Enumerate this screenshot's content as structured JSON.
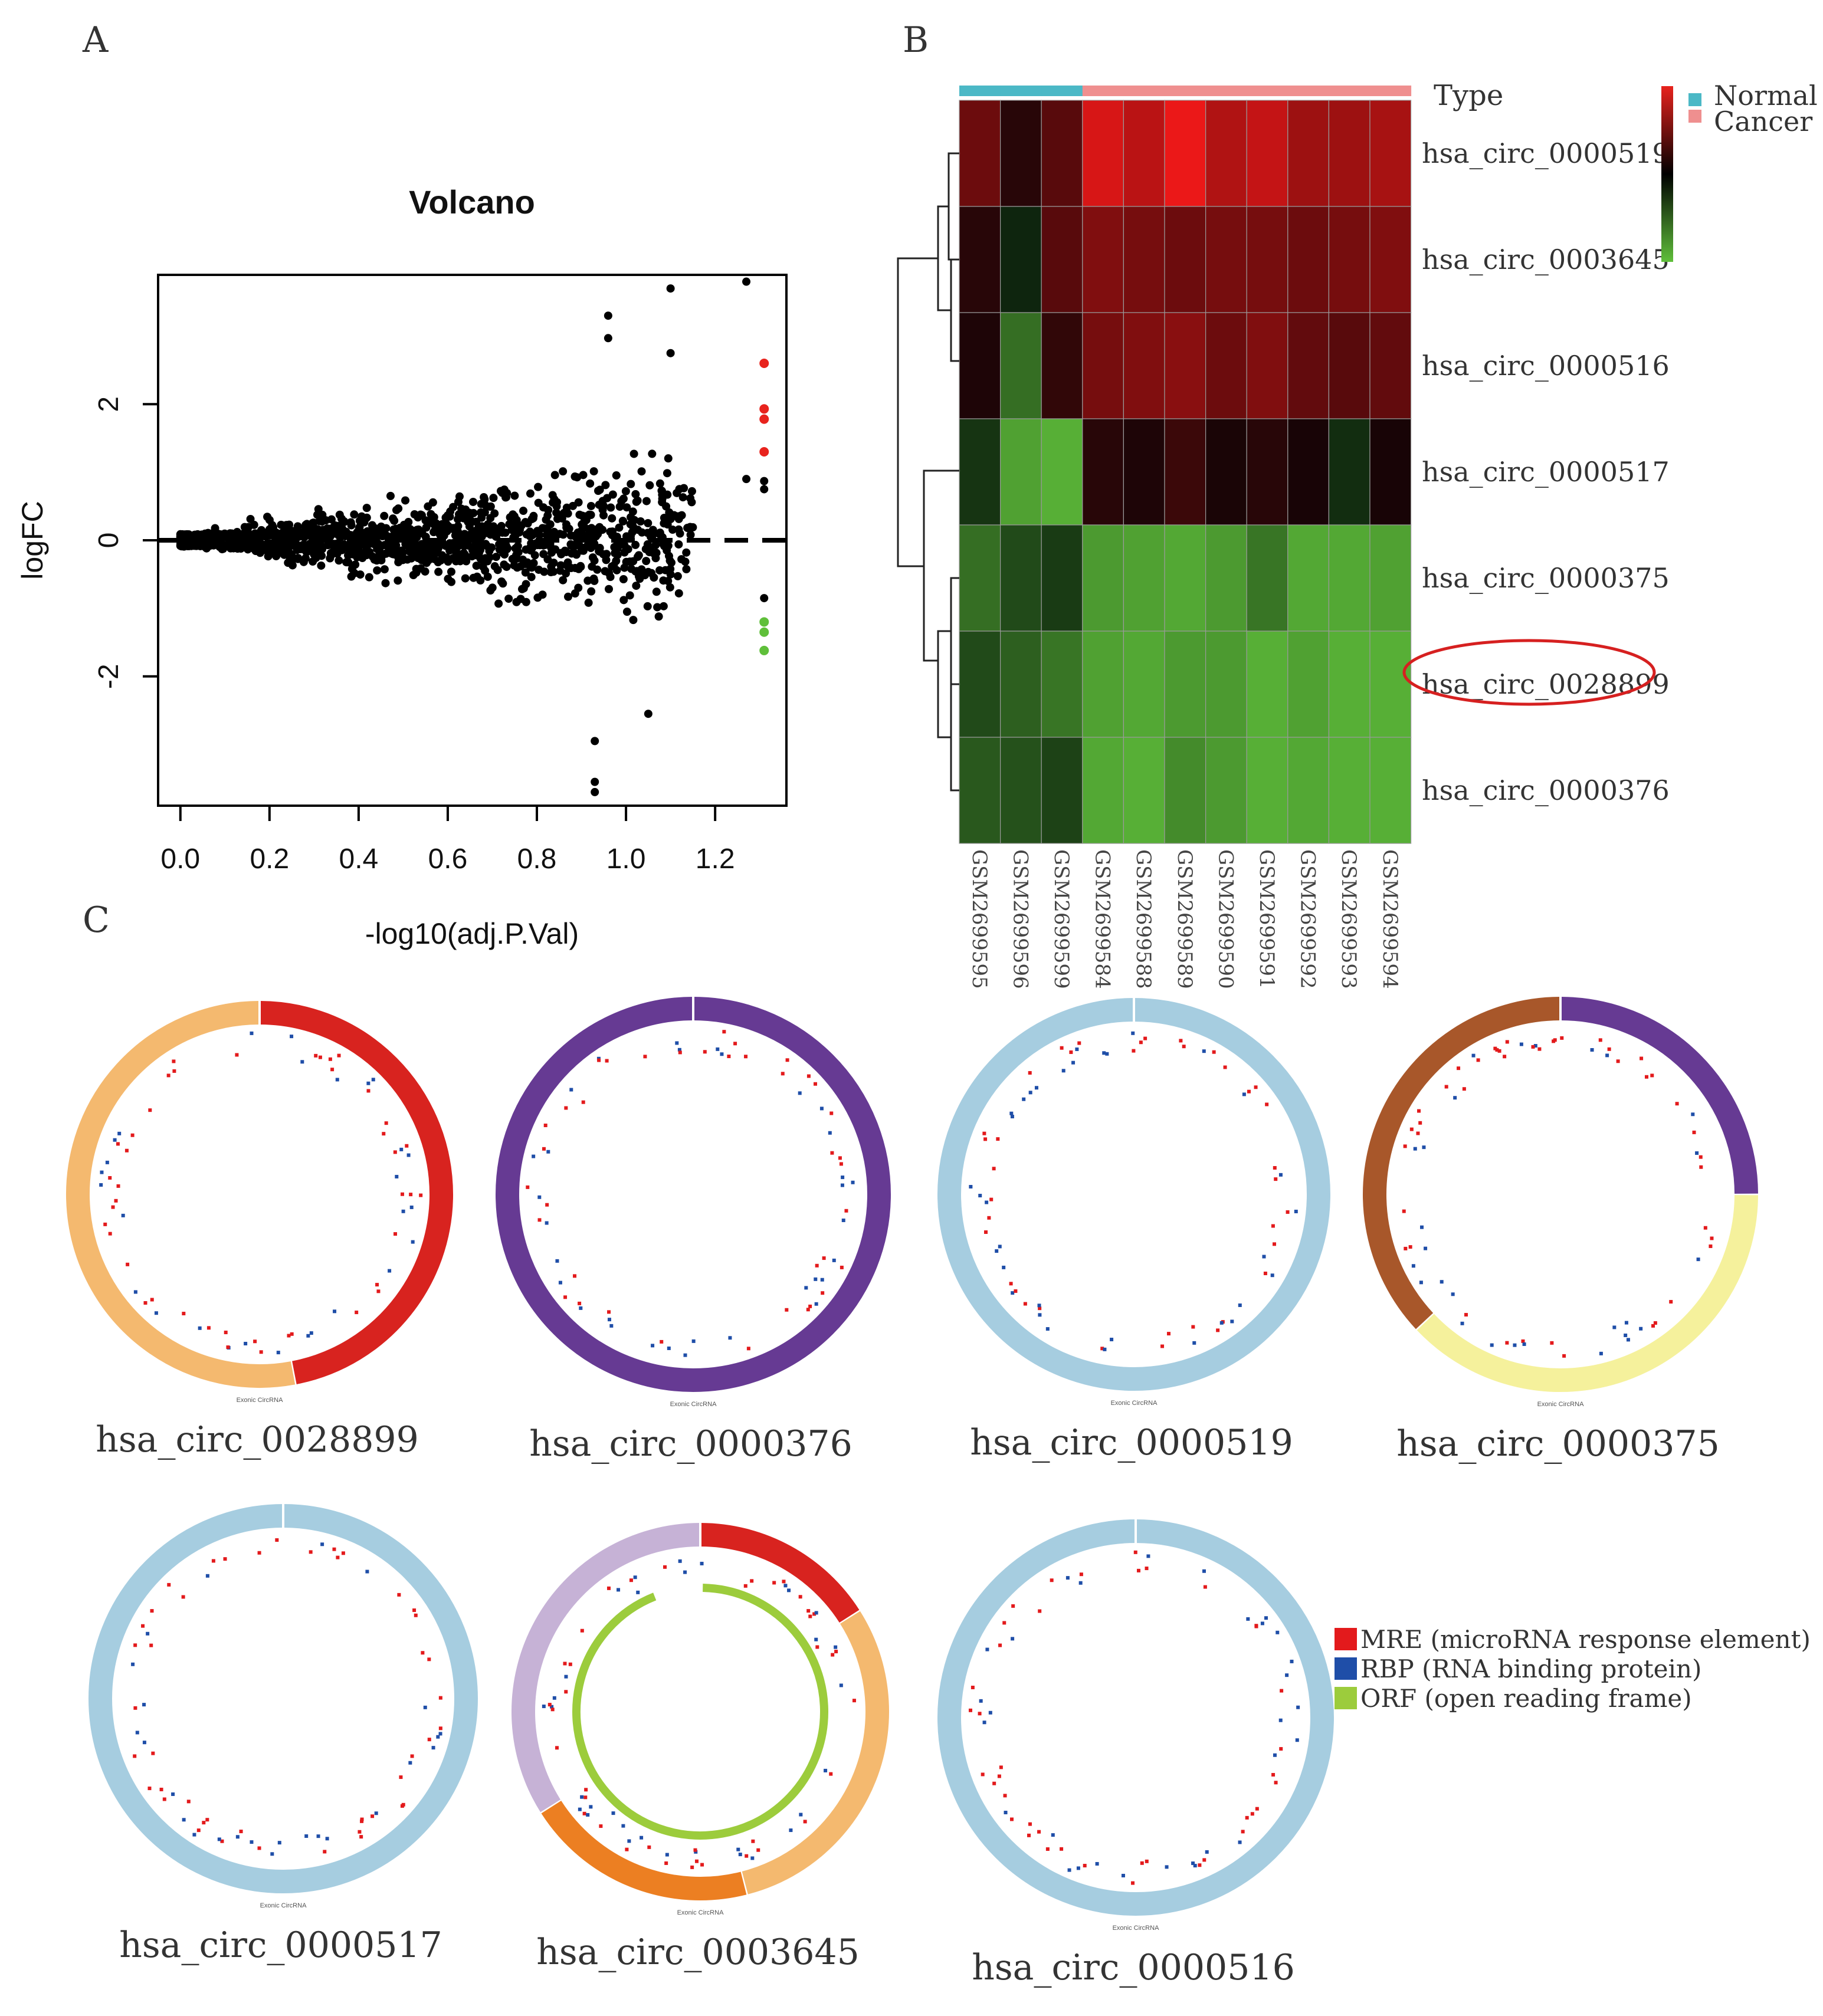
{
  "panels": {
    "A": {
      "label": "A",
      "chart_data": {
        "type": "scatter",
        "title": "Volcano",
        "xlabel": "-log10(adj.P.Val)",
        "ylabel": "logFC",
        "xlim": [
          -0.05,
          1.36
        ],
        "ylim": [
          -3.9,
          3.9
        ],
        "xticks": [
          0.0,
          0.2,
          0.4,
          0.6,
          0.8,
          1.0,
          1.2
        ],
        "xtick_labels": [
          "0.0",
          "0.2",
          "0.4",
          "0.6",
          "0.8",
          "1.0",
          "1.2"
        ],
        "yticks": [
          -2,
          0,
          2
        ],
        "ytick_labels": [
          "-2",
          "0",
          "2"
        ],
        "hline": 0,
        "grid": false,
        "colors": {
          "points": "#000000",
          "up": "#e8231d",
          "down": "#5fbf3a"
        },
        "highlight_up": [
          [
            1.31,
            2.6
          ],
          [
            1.31,
            1.93
          ],
          [
            1.31,
            1.78
          ],
          [
            1.31,
            1.3
          ]
        ],
        "highlight_down": [
          [
            1.31,
            -1.2
          ],
          [
            1.31,
            -1.35
          ],
          [
            1.31,
            -1.62
          ]
        ],
        "point_count": 1450
      }
    },
    "B": {
      "label": "B",
      "chart_data": {
        "type": "heatmap",
        "annotation_title": "Type",
        "legend": [
          {
            "name": "Normal",
            "color": "#4bb8c6"
          },
          {
            "name": "Cancer",
            "color": "#ef8f8f"
          }
        ],
        "colorbar": [
          "#e8231d",
          "#000000",
          "#5fbf3a"
        ],
        "columns": [
          "GSM2699595",
          "GSM2699596",
          "GSM2699599",
          "GSM2699584",
          "GSM2699588",
          "GSM2699589",
          "GSM2699590",
          "GSM2699591",
          "GSM2699592",
          "GSM2699593",
          "GSM2699594"
        ],
        "column_types": [
          "Normal",
          "Normal",
          "Normal",
          "Cancer",
          "Cancer",
          "Cancer",
          "Cancer",
          "Cancer",
          "Cancer",
          "Cancer",
          "Cancer"
        ],
        "rows": [
          "hsa_circ_0000519",
          "hsa_circ_0003645",
          "hsa_circ_0000516",
          "hsa_circ_0000517",
          "hsa_circ_0000375",
          "hsa_circ_0028899",
          "hsa_circ_0000376"
        ],
        "highlighted_row": "hsa_circ_0028899",
        "values": [
          [
            0.45,
            0.1,
            0.35,
            1.0,
            0.85,
            1.1,
            0.8,
            0.9,
            0.7,
            0.7,
            0.75
          ],
          [
            0.1,
            -0.05,
            0.35,
            0.55,
            0.5,
            0.45,
            0.5,
            0.5,
            0.45,
            0.5,
            0.55
          ],
          [
            0.05,
            -0.55,
            0.15,
            0.5,
            0.55,
            0.6,
            0.45,
            0.55,
            0.4,
            0.35,
            0.4
          ],
          [
            -0.15,
            -0.9,
            -1.0,
            0.1,
            0.05,
            0.2,
            0.03,
            0.1,
            0.02,
            -0.1,
            0.02
          ],
          [
            -0.55,
            -0.3,
            -0.2,
            -0.85,
            -0.9,
            -0.95,
            -0.85,
            -0.6,
            -0.95,
            -0.95,
            -0.9
          ],
          [
            -0.3,
            -0.45,
            -0.6,
            -0.9,
            -0.95,
            -0.85,
            -0.85,
            -1.0,
            -0.9,
            -1.0,
            -1.0
          ],
          [
            -0.4,
            -0.35,
            -0.25,
            -0.95,
            -1.0,
            -0.75,
            -0.85,
            -1.0,
            -0.95,
            -1.0,
            -1.0
          ]
        ]
      }
    },
    "C": {
      "label": "C",
      "plots": [
        {
          "name": "hsa_circ_0028899",
          "caption": "Exonic CircRNA",
          "segments": [
            {
              "color": "#d8231f",
              "frac": 0.47
            },
            {
              "color": "#f4b96f",
              "frac": 0.53
            }
          ],
          "orf": null
        },
        {
          "name": "hsa_circ_0000376",
          "caption": "Exonic CircRNA",
          "segments": [
            {
              "color": "#663a93",
              "frac": 1.0
            }
          ],
          "orf": null
        },
        {
          "name": "hsa_circ_0000519",
          "caption": "Exonic CircRNA",
          "segments": [
            {
              "color": "#a6cde0",
              "frac": 1.0
            }
          ],
          "orf": null
        },
        {
          "name": "hsa_circ_0000375",
          "caption": "Exonic CircRNA",
          "segments": [
            {
              "color": "#663a93",
              "frac": 0.25
            },
            {
              "color": "#f5f19c",
              "frac": 0.38
            },
            {
              "color": "#a8572a",
              "frac": 0.37
            }
          ],
          "orf": null
        },
        {
          "name": "hsa_circ_0000517",
          "caption": "Exonic CircRNA",
          "segments": [
            {
              "color": "#a6cde0",
              "frac": 1.0
            }
          ],
          "orf": null
        },
        {
          "name": "hsa_circ_0003645",
          "caption": "Exonic CircRNA",
          "segments": [
            {
              "color": "#d8231f",
              "frac": 0.16
            },
            {
              "color": "#f4b96f",
              "frac": 0.3
            },
            {
              "color": "#ec7f22",
              "frac": 0.2
            },
            {
              "color": "#c6b2d6",
              "frac": 0.34
            }
          ],
          "orf": {
            "color": "#9ccc3c"
          }
        },
        {
          "name": "hsa_circ_0000516",
          "caption": "Exonic CircRNA",
          "segments": [
            {
              "color": "#a6cde0",
              "frac": 1.0
            }
          ],
          "orf": null
        }
      ],
      "legend": [
        {
          "label": "MRE (microRNA response element)",
          "color": "#e31a1c"
        },
        {
          "label": "RBP (RNA binding protein)",
          "color": "#1f4ea8"
        },
        {
          "label": "ORF (open reading frame)",
          "color": "#9ccc3c"
        }
      ]
    }
  }
}
